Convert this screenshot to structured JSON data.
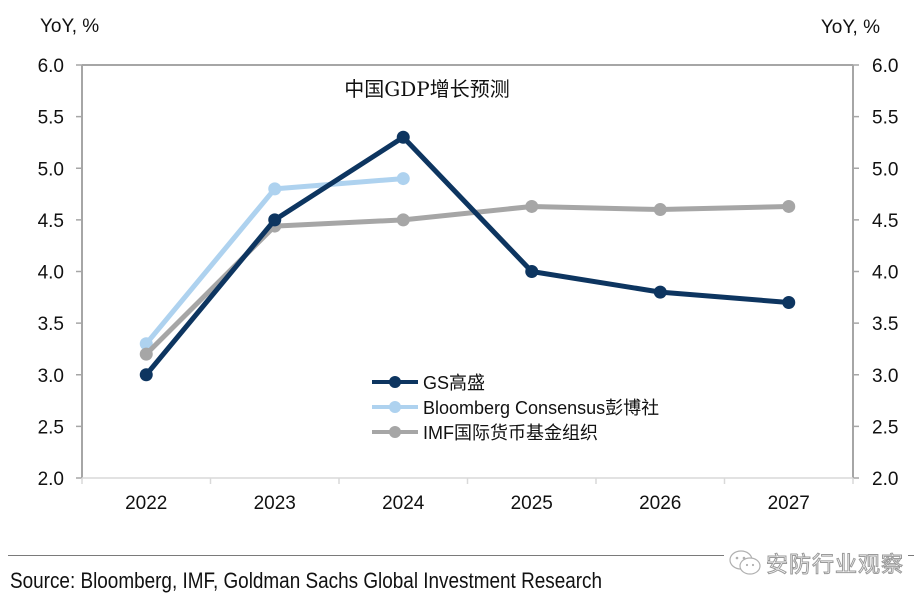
{
  "chart_data": {
    "type": "line",
    "title": "中国GDP增长预测",
    "xlabel": "",
    "ylabel_left": "YoY, %",
    "ylabel_right": "YoY, %",
    "categories": [
      "2022",
      "2023",
      "2024",
      "2025",
      "2026",
      "2027"
    ],
    "ylim": [
      2.0,
      6.0
    ],
    "yticks": [
      "2.0",
      "2.5",
      "3.0",
      "3.5",
      "4.0",
      "4.5",
      "5.0",
      "5.5",
      "6.0"
    ],
    "grid": false,
    "legend_position": "bottom-center (inside plot)",
    "series": [
      {
        "name": "GS高盛",
        "color": "#0d3560",
        "values": [
          3.0,
          4.5,
          5.3,
          4.0,
          3.8,
          3.7
        ]
      },
      {
        "name": "Bloomberg Consensus彭博社",
        "color": "#aed2ef",
        "values": [
          3.3,
          4.8,
          4.9,
          null,
          null,
          null
        ]
      },
      {
        "name": "IMF国际货币基金组织",
        "color": "#a6a6a6",
        "values": [
          3.2,
          4.44,
          4.5,
          4.63,
          4.6,
          4.63
        ]
      }
    ]
  },
  "footer": {
    "source": "Source: Bloomberg, IMF, Goldman Sachs Global Investment Research",
    "watermark": "安防行业观察",
    "watermark_icon": "wechat-icon"
  }
}
